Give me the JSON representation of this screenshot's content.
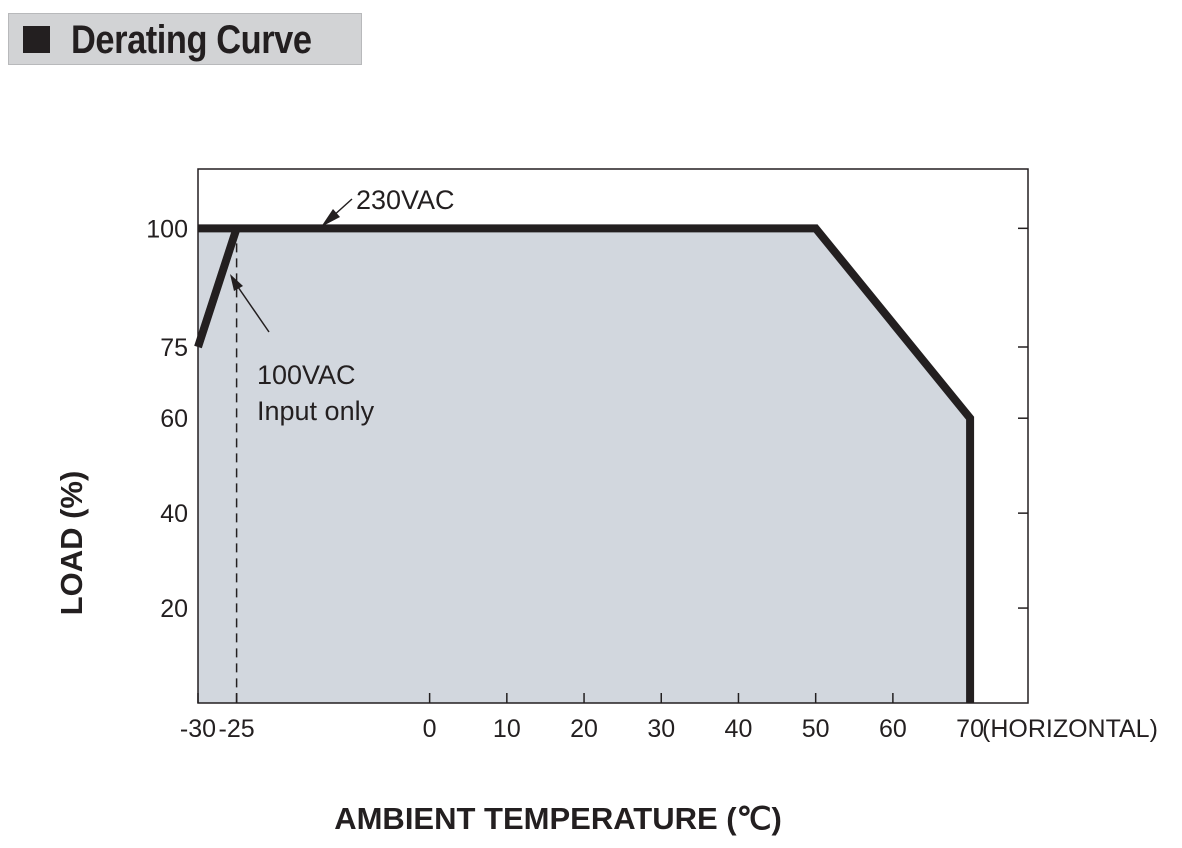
{
  "header": {
    "title": "Derating Curve"
  },
  "chart_data": {
    "type": "line",
    "title": "Derating Curve",
    "xlabel": "AMBIENT TEMPERATURE (℃)",
    "ylabel": "LOAD (%)",
    "x_suffix": "(HORIZONTAL)",
    "xlim": [
      -30,
      77.5
    ],
    "ylim": [
      0,
      112.5
    ],
    "x_ticks": [
      -30,
      -25,
      0,
      10,
      20,
      30,
      40,
      50,
      60,
      70
    ],
    "x_tick_labels": [
      "-30",
      "-25",
      "0",
      "10",
      "20",
      "30",
      "40",
      "50",
      "60",
      "70"
    ],
    "y_ticks": [
      20,
      40,
      60,
      75,
      100
    ],
    "y_tick_labels": [
      "20",
      "40",
      "60",
      "75",
      "100"
    ],
    "grid": false,
    "colors": {
      "line": "#231f20",
      "fill": "#d2d7de",
      "frame": "#231f20",
      "title_bg": "#d2d3d5"
    },
    "series": [
      {
        "name": "230VAC",
        "x": [
          -30,
          50,
          70,
          70
        ],
        "y": [
          100,
          100,
          60,
          0
        ]
      },
      {
        "name": "100VAC Input only",
        "x": [
          -30,
          -25
        ],
        "y": [
          75,
          100
        ]
      }
    ],
    "annotations": {
      "label_230": "230VAC",
      "label_100_line1": "100VAC",
      "label_100_line2": "Input only",
      "reference_x": -25
    }
  }
}
